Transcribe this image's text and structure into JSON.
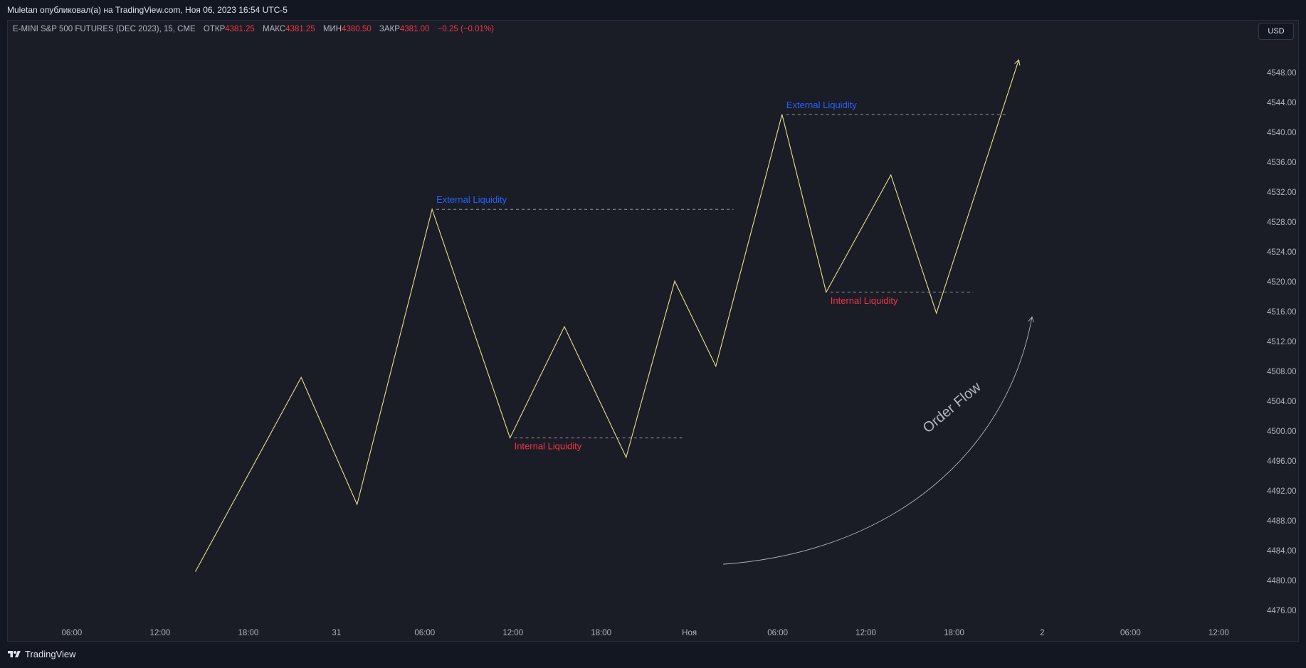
{
  "header": {
    "text": "Muletan опубликовал(а) на TradingView.com, Ноя 06, 2023 16:54 UTC-5"
  },
  "legend": {
    "symbol": "E-MINI S&P 500 FUTURES (DEC 2023), 15, CME",
    "open_label": "ОТКР",
    "open_value": "4381.25",
    "high_label": "МАКС",
    "high_value": "4381.25",
    "low_label": "МИН",
    "low_value": "4380.50",
    "close_label": "ЗАКР",
    "close_value": "4381.00",
    "change": "−0.25 (−0.01%)"
  },
  "currency": {
    "label": "USD"
  },
  "brand": {
    "name": "TradingView"
  },
  "colors": {
    "background": "#1a1c26",
    "line": "#e8e38a",
    "external_liquidity": "#2962ff",
    "internal_liquidity": "#f23645",
    "dashed": "#9598a1",
    "order_flow": "#b2b5be"
  },
  "chart_data": {
    "type": "line",
    "y_axis": {
      "ticks": [
        "4548.00",
        "4544.00",
        "4540.00",
        "4536.00",
        "4532.00",
        "4528.00",
        "4524.00",
        "4520.00",
        "4516.00",
        "4512.00",
        "4508.00",
        "4504.00",
        "4500.00",
        "4496.00",
        "4492.00",
        "4488.00",
        "4484.00",
        "4480.00",
        "4476.00"
      ],
      "range": [
        4474.5,
        4552
      ]
    },
    "x_axis": {
      "ticks": [
        "06:00",
        "12:00",
        "18:00",
        "31",
        "06:00",
        "12:00",
        "18:00",
        "Ноя",
        "06:00",
        "12:00",
        "18:00",
        "2",
        "06:00",
        "12:00"
      ],
      "tick_hours": [
        6,
        12,
        18,
        24,
        30,
        36,
        42,
        48,
        54,
        60,
        66,
        72,
        78,
        84
      ],
      "range_hours": [
        1.6,
        86.4
      ]
    },
    "series": [
      {
        "x_hours": [
          14.4,
          21.6,
          25.4,
          30.5,
          35.8,
          39.5,
          43.7,
          47.0,
          49.8,
          54.3,
          57.3,
          61.7,
          64.8,
          70.4
        ],
        "values": [
          4481.2,
          4507.2,
          4490.2,
          4529.7,
          4499.1,
          4514.0,
          4496.5,
          4520.1,
          4508.7,
          4542.4,
          4518.6,
          4534.3,
          4515.8,
          4549.7
        ]
      }
    ],
    "annotations": [
      {
        "text": "External Liquidity",
        "kind": "external",
        "x_hours": 30.5,
        "y": 4529.7,
        "x_end_hours": 51.0
      },
      {
        "text": "Internal Liquidity",
        "kind": "internal",
        "x_hours": 35.8,
        "y": 4499.1,
        "x_end_hours": 47.7
      },
      {
        "text": "External Liquidity",
        "kind": "external",
        "x_hours": 54.3,
        "y": 4542.4,
        "x_end_hours": 69.7
      },
      {
        "text": "Internal Liquidity",
        "kind": "internal",
        "x_hours": 57.3,
        "y": 4518.6,
        "x_end_hours": 67.3
      }
    ],
    "order_flow": {
      "text": "Order Flow",
      "start": {
        "x_hours": 50.3,
        "y": 4482.2
      },
      "end": {
        "x_hours": 71.3,
        "y": 4515.3
      }
    }
  }
}
